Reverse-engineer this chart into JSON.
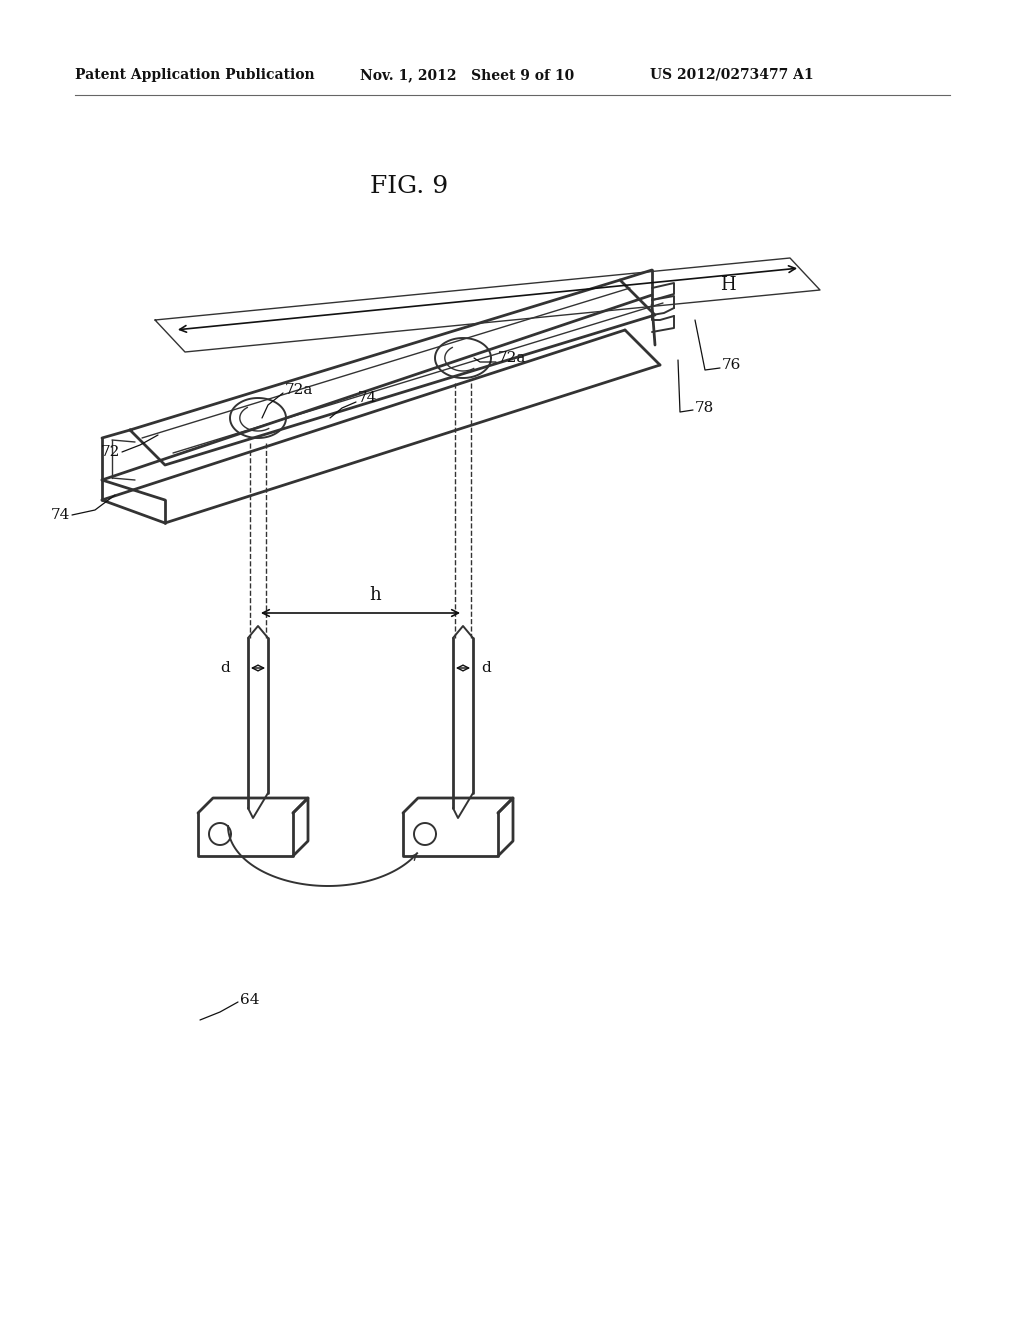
{
  "background_color": "#ffffff",
  "header_left": "Patent Application Publication",
  "header_mid": "Nov. 1, 2012   Sheet 9 of 10",
  "header_right": "US 2012/0273477 A1",
  "fig_label": "FIG. 9",
  "line_color": "#333333",
  "dark_color": "#111111"
}
